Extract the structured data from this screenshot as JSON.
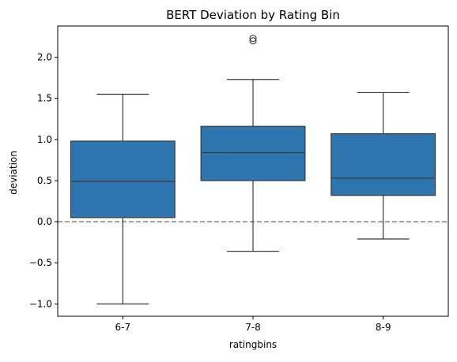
{
  "chart_data": {
    "type": "boxplot",
    "title": "BERT Deviation by Rating Bin",
    "xlabel": "ratingbins",
    "ylabel": "deviation",
    "categories": [
      "6-7",
      "7-8",
      "8-9"
    ],
    "boxes": [
      {
        "category": "6-7",
        "whisker_low": -1.0,
        "q1": 0.05,
        "median": 0.49,
        "q3": 0.98,
        "whisker_high": 1.55,
        "outliers": []
      },
      {
        "category": "7-8",
        "whisker_low": -0.36,
        "q1": 0.5,
        "median": 0.84,
        "q3": 1.16,
        "whisker_high": 1.73,
        "outliers": [
          2.2,
          2.23
        ]
      },
      {
        "category": "8-9",
        "whisker_low": -0.21,
        "q1": 0.32,
        "median": 0.53,
        "q3": 1.07,
        "whisker_high": 1.57,
        "outliers": []
      }
    ],
    "ylim": [
      -1.15,
      2.38
    ],
    "yticks": [
      -1.0,
      -0.5,
      0.0,
      0.5,
      1.0,
      1.5,
      2.0
    ],
    "ytick_labels": [
      "−1.0",
      "−0.5",
      "0.0",
      "0.5",
      "1.0",
      "1.5",
      "2.0"
    ],
    "reference_line": {
      "y": 0.0,
      "style": "dashed",
      "color": "#808080"
    },
    "colors": {
      "box_fill": "#2e75b0",
      "line": "#3a3a3a",
      "axis": "#000000"
    },
    "grid": false,
    "legend": "none"
  }
}
